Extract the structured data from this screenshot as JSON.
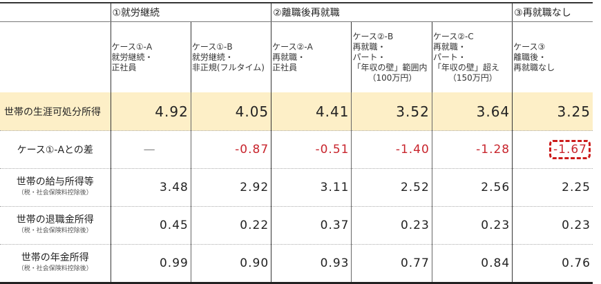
{
  "table": {
    "groups": [
      {
        "label": "①就労継続",
        "colspan": 2
      },
      {
        "label": "②離職後再就職",
        "colspan": 3
      },
      {
        "label": "③再就職なし",
        "colspan": 1
      }
    ],
    "cases": [
      {
        "line1": "ケース①-A",
        "line2": "就労継続・",
        "line3": "正社員",
        "line4": ""
      },
      {
        "line1": "ケース①-B",
        "line2": "就労継続・",
        "line3": "非正規(フルタイム)",
        "line4": ""
      },
      {
        "line1": "ケース②-A",
        "line2": "再就職・",
        "line3": "正社員",
        "line4": ""
      },
      {
        "line1": "ケース②-B",
        "line2": "再就職・",
        "line3": "パート・",
        "line4": "「年収の壁」範囲内",
        "line5": "（100万円）"
      },
      {
        "line1": "ケース②-C",
        "line2": "再就職・",
        "line3": "パート・",
        "line4": "「年収の壁」超え",
        "line5": "（150万円）"
      },
      {
        "line1": "ケース③",
        "line2": "離職後・",
        "line3": "再就職なし",
        "line4": ""
      }
    ],
    "rows": [
      {
        "label": "世帯の生涯可処分所得",
        "note": "",
        "values": [
          "4.92",
          "4.05",
          "4.41",
          "3.52",
          "3.64",
          "3.25"
        ]
      },
      {
        "label": "ケース①-Aとの差",
        "note": "",
        "values": [
          "—",
          "-0.87",
          "-0.51",
          "-1.40",
          "-1.28",
          "-1.67"
        ]
      },
      {
        "label": "世帯の給与所得等",
        "note": "（税・社会保険料控除後）",
        "values": [
          "3.48",
          "2.92",
          "3.11",
          "2.52",
          "2.56",
          "2.25"
        ]
      },
      {
        "label": "世帯の退職金所得",
        "note": "（税・社会保険料控除後）",
        "values": [
          "0.45",
          "0.22",
          "0.37",
          "0.23",
          "0.23",
          "0.23"
        ]
      },
      {
        "label": "世帯の年金所得",
        "note": "（税・社会保険料控除後）",
        "values": [
          "0.99",
          "0.90",
          "0.93",
          "0.77",
          "0.84",
          "0.76"
        ]
      }
    ],
    "highlight_color": "#fdefc7",
    "negative_color": "#c8242c",
    "emphasis_box_color": "#cc1a1a"
  }
}
